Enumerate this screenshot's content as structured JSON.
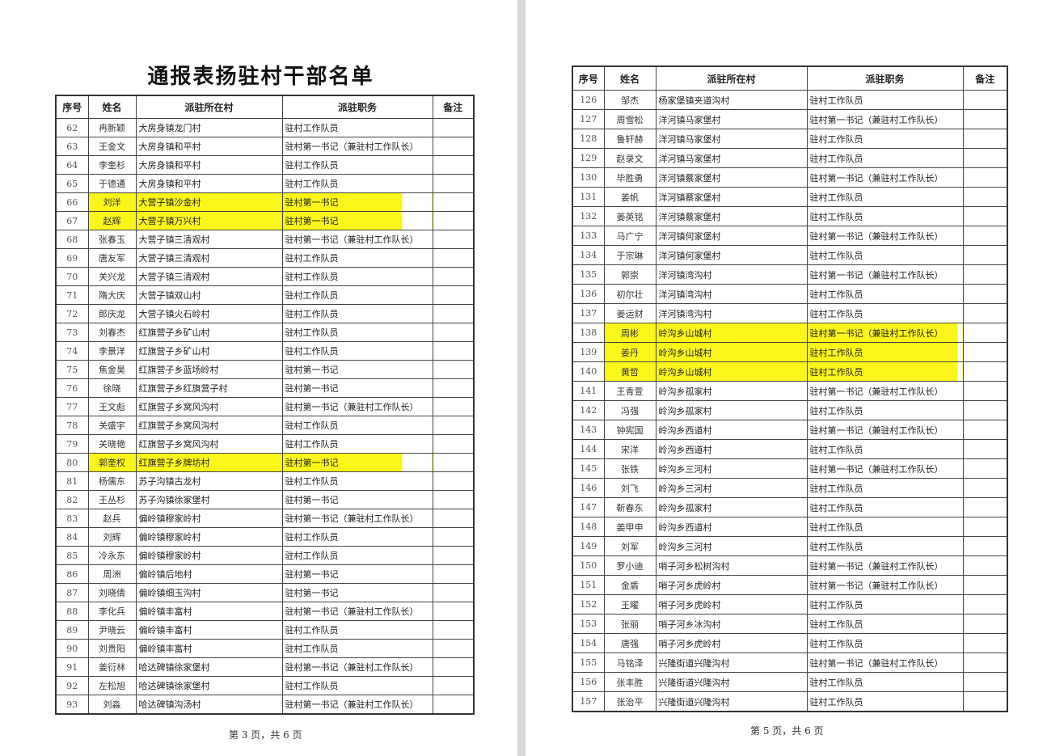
{
  "highlight_color": "#fbf51a",
  "left_page": {
    "title": "通报表扬驻村干部名单",
    "headers": [
      "序号",
      "姓名",
      "派驻所在村",
      "派驻职务",
      "备注"
    ],
    "rows": [
      {
        "seq": "62",
        "name": "冉新颖",
        "village": "大房身镇龙门村",
        "role": "驻村工作队员",
        "highlighted": false
      },
      {
        "seq": "63",
        "name": "王金文",
        "village": "大房身镇和平村",
        "role": "驻村第一书记（兼驻村工作队长）",
        "highlighted": false
      },
      {
        "seq": "64",
        "name": "李奎杉",
        "village": "大房身镇和平村",
        "role": "驻村工作队员",
        "highlighted": false
      },
      {
        "seq": "65",
        "name": "于德通",
        "village": "大房身镇和平村",
        "role": "驻村工作队员",
        "highlighted": false
      },
      {
        "seq": "66",
        "name": "刘洋",
        "village": "大营子镇沙金村",
        "role": "驻村第一书记",
        "highlighted": true
      },
      {
        "seq": "67",
        "name": "赵辉",
        "village": "大营子镇万兴村",
        "role": "驻村第一书记",
        "highlighted": true
      },
      {
        "seq": "68",
        "name": "张春玉",
        "village": "大营子镇三清观村",
        "role": "驻村第一书记（兼驻村工作队长）",
        "highlighted": false
      },
      {
        "seq": "69",
        "name": "唐友军",
        "village": "大营子镇三清观村",
        "role": "驻村工作队员",
        "highlighted": false
      },
      {
        "seq": "70",
        "name": "关兴龙",
        "village": "大营子镇三清观村",
        "role": "驻村工作队员",
        "highlighted": false
      },
      {
        "seq": "71",
        "name": "隋大庆",
        "village": "大营子镇双山村",
        "role": "驻村工作队员",
        "highlighted": false
      },
      {
        "seq": "72",
        "name": "郎庆龙",
        "village": "大营子镇火石岭村",
        "role": "驻村工作队员",
        "highlighted": false
      },
      {
        "seq": "73",
        "name": "刘春杰",
        "village": "红旗营子乡矿山村",
        "role": "驻村工作队员",
        "highlighted": false
      },
      {
        "seq": "74",
        "name": "李景洋",
        "village": "红旗营子乡矿山村",
        "role": "驻村工作队员",
        "highlighted": false
      },
      {
        "seq": "75",
        "name": "焦金昊",
        "village": "红旗营子乡蓝场岭村",
        "role": "驻村第一书记",
        "highlighted": false
      },
      {
        "seq": "76",
        "name": "徐晓",
        "village": "红旗营子乡红旗营子村",
        "role": "驻村第一书记",
        "highlighted": false
      },
      {
        "seq": "77",
        "name": "王文彪",
        "village": "红旗营子乡窝风沟村",
        "role": "驻村第一书记（兼驻村工作队长）",
        "highlighted": false
      },
      {
        "seq": "78",
        "name": "关盛宇",
        "village": "红旗营子乡窝风沟村",
        "role": "驻村工作队员",
        "highlighted": false
      },
      {
        "seq": "79",
        "name": "关晓艳",
        "village": "红旗营子乡窝风沟村",
        "role": "驻村工作队员",
        "highlighted": false
      },
      {
        "seq": "80",
        "name": "郭奎权",
        "village": "红旗营子乡牌坊村",
        "role": "驻村第一书记",
        "highlighted": true
      },
      {
        "seq": "81",
        "name": "杨儒东",
        "village": "苏子沟镇古龙村",
        "role": "驻村工作队员",
        "highlighted": false
      },
      {
        "seq": "82",
        "name": "王丛杉",
        "village": "苏子沟镇徐家堡村",
        "role": "驻村第一书记",
        "highlighted": false
      },
      {
        "seq": "83",
        "name": "赵兵",
        "village": "偏岭镇穆家岭村",
        "role": "驻村第一书记（兼驻村工作队长）",
        "highlighted": false
      },
      {
        "seq": "84",
        "name": "刘辉",
        "village": "偏岭镇穆家岭村",
        "role": "驻村工作队员",
        "highlighted": false
      },
      {
        "seq": "85",
        "name": "冷永东",
        "village": "偏岭镇穆家岭村",
        "role": "驻村工作队员",
        "highlighted": false
      },
      {
        "seq": "86",
        "name": "周洲",
        "village": "偏岭镇后地村",
        "role": "驻村第一书记",
        "highlighted": false
      },
      {
        "seq": "87",
        "name": "刘晓倩",
        "village": "偏岭镇细玉沟村",
        "role": "驻村第一书记",
        "highlighted": false
      },
      {
        "seq": "88",
        "name": "李化兵",
        "village": "偏岭镇丰富村",
        "role": "驻村第一书记（兼驻村工作队长）",
        "highlighted": false
      },
      {
        "seq": "89",
        "name": "尹晓云",
        "village": "偏岭镇丰富村",
        "role": "驻村工作队员",
        "highlighted": false
      },
      {
        "seq": "90",
        "name": "刘贵阳",
        "village": "偏岭镇丰富村",
        "role": "驻村工作队员",
        "highlighted": false
      },
      {
        "seq": "91",
        "name": "姜衍林",
        "village": "哈达碑镇徐家堡村",
        "role": "驻村第一书记（兼驻村工作队长）",
        "highlighted": false
      },
      {
        "seq": "92",
        "name": "左松旭",
        "village": "哈达碑镇徐家堡村",
        "role": "驻村工作队员",
        "highlighted": false
      },
      {
        "seq": "93",
        "name": "刘淼",
        "village": "哈达碑镇沟汤村",
        "role": "驻村第一书记（兼驻村工作队长）",
        "highlighted": false
      }
    ],
    "footer": "第 3 页，共 6 页"
  },
  "right_page": {
    "headers": [
      "序号",
      "姓名",
      "派驻所在村",
      "派驻职务",
      "备注"
    ],
    "rows": [
      {
        "seq": "126",
        "name": "邹杰",
        "village": "杨家堡镇夹道沟村",
        "role": "驻村工作队员",
        "highlighted": false
      },
      {
        "seq": "127",
        "name": "周雪松",
        "village": "洋河镇马家堡村",
        "role": "驻村第一书记（兼驻村工作队长）",
        "highlighted": false
      },
      {
        "seq": "128",
        "name": "鲁轩赫",
        "village": "洋河镇马家堡村",
        "role": "驻村工作队员",
        "highlighted": false
      },
      {
        "seq": "129",
        "name": "赵录文",
        "village": "洋河镇马家堡村",
        "role": "驻村工作队员",
        "highlighted": false
      },
      {
        "seq": "130",
        "name": "毕胜勇",
        "village": "洋河镇蔡家堡村",
        "role": "驻村第一书记（兼驻村工作队长）",
        "highlighted": false
      },
      {
        "seq": "131",
        "name": "姜帆",
        "village": "洋河镇蔡家堡村",
        "role": "驻村工作队员",
        "highlighted": false
      },
      {
        "seq": "132",
        "name": "姜英铭",
        "village": "洋河镇蔡家堡村",
        "role": "驻村工作队员",
        "highlighted": false
      },
      {
        "seq": "133",
        "name": "马广宁",
        "village": "洋河镇何家堡村",
        "role": "驻村第一书记（兼驻村工作队长）",
        "highlighted": false
      },
      {
        "seq": "134",
        "name": "于宗琳",
        "village": "洋河镇何家堡村",
        "role": "驻村工作队员",
        "highlighted": false
      },
      {
        "seq": "135",
        "name": "郭崇",
        "village": "洋河镇湾沟村",
        "role": "驻村第一书记（兼驻村工作队长）",
        "highlighted": false
      },
      {
        "seq": "136",
        "name": "初尔壮",
        "village": "洋河镇湾沟村",
        "role": "驻村工作队员",
        "highlighted": false
      },
      {
        "seq": "137",
        "name": "姜运财",
        "village": "洋河镇湾沟村",
        "role": "驻村工作队员",
        "highlighted": false
      },
      {
        "seq": "138",
        "name": "周彬",
        "village": "岭沟乡山城村",
        "role": "驻村第一书记（兼驻村工作队长）",
        "highlighted": true
      },
      {
        "seq": "139",
        "name": "姜丹",
        "village": "岭沟乡山城村",
        "role": "驻村工作队员",
        "highlighted": true
      },
      {
        "seq": "140",
        "name": "黄哲",
        "village": "岭沟乡山城村",
        "role": "驻村工作队员",
        "highlighted": true
      },
      {
        "seq": "141",
        "name": "王青萱",
        "village": "岭沟乡孤家村",
        "role": "驻村第一书记（兼驻村工作队长）",
        "highlighted": false
      },
      {
        "seq": "142",
        "name": "冯强",
        "village": "岭沟乡孤家村",
        "role": "驻村工作队员",
        "highlighted": false
      },
      {
        "seq": "143",
        "name": "钟宪国",
        "village": "岭沟乡西道村",
        "role": "驻村第一书记（兼驻村工作队长）",
        "highlighted": false
      },
      {
        "seq": "144",
        "name": "宋洋",
        "village": "岭沟乡西道村",
        "role": "驻村工作队员",
        "highlighted": false
      },
      {
        "seq": "145",
        "name": "张铁",
        "village": "岭沟乡三河村",
        "role": "驻村第一书记（兼驻村工作队长）",
        "highlighted": false
      },
      {
        "seq": "146",
        "name": "刘飞",
        "village": "岭沟乡三河村",
        "role": "驻村工作队员",
        "highlighted": false
      },
      {
        "seq": "147",
        "name": "靳春东",
        "village": "岭沟乡孤家村",
        "role": "驻村工作队员",
        "highlighted": false
      },
      {
        "seq": "148",
        "name": "姜甲申",
        "village": "岭沟乡西道村",
        "role": "驻村工作队员",
        "highlighted": false
      },
      {
        "seq": "149",
        "name": "刘军",
        "village": "岭沟乡三河村",
        "role": "驻村工作队员",
        "highlighted": false
      },
      {
        "seq": "150",
        "name": "罗小迪",
        "village": "哨子河乡松树沟村",
        "role": "驻村第一书记（兼驻村工作队长）",
        "highlighted": false
      },
      {
        "seq": "151",
        "name": "金盾",
        "village": "哨子河乡虎岭村",
        "role": "驻村第一书记（兼驻村工作队长）",
        "highlighted": false
      },
      {
        "seq": "152",
        "name": "王曜",
        "village": "哨子河乡虎岭村",
        "role": "驻村工作队员",
        "highlighted": false
      },
      {
        "seq": "153",
        "name": "张丽",
        "village": "哨子河乡冰沟村",
        "role": "驻村工作队员",
        "highlighted": false
      },
      {
        "seq": "154",
        "name": "唐强",
        "village": "哨子河乡虎岭村",
        "role": "驻村工作队员",
        "highlighted": false
      },
      {
        "seq": "155",
        "name": "马铭泽",
        "village": "兴隆街道兴隆沟村",
        "role": "驻村第一书记（兼驻村工作队长）",
        "highlighted": false
      },
      {
        "seq": "156",
        "name": "张丰胜",
        "village": "兴隆街道兴隆沟村",
        "role": "驻村工作队员",
        "highlighted": false
      },
      {
        "seq": "157",
        "name": "张治平",
        "village": "兴隆街道兴隆沟村",
        "role": "驻村工作队员",
        "highlighted": false
      }
    ],
    "footer": "第 5 页，共 6 页"
  }
}
